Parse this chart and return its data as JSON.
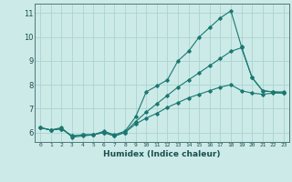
{
  "xlabel": "Humidex (Indice chaleur)",
  "ylabel": "",
  "background_color": "#cceae8",
  "grid_color": "#aad4d0",
  "line_color": "#1a7870",
  "xlim": [
    -0.5,
    23.5
  ],
  "ylim": [
    5.6,
    11.4
  ],
  "yticks": [
    6,
    7,
    8,
    9,
    10,
    11
  ],
  "xticks": [
    0,
    1,
    2,
    3,
    4,
    5,
    6,
    7,
    8,
    9,
    10,
    11,
    12,
    13,
    14,
    15,
    16,
    17,
    18,
    19,
    20,
    21,
    22,
    23
  ],
  "line1_x": [
    0,
    1,
    2,
    3,
    4,
    5,
    6,
    7,
    8,
    9,
    10,
    11,
    12,
    13,
    14,
    15,
    16,
    17,
    18,
    19,
    20,
    21,
    22,
    23
  ],
  "line1_y": [
    6.2,
    6.1,
    6.2,
    5.8,
    5.85,
    5.9,
    6.05,
    5.9,
    6.05,
    6.65,
    7.7,
    7.95,
    8.2,
    9.0,
    9.4,
    10.0,
    10.4,
    10.8,
    11.1,
    9.6,
    8.3,
    7.75,
    7.7,
    7.7
  ],
  "line2_x": [
    0,
    1,
    2,
    3,
    4,
    5,
    6,
    7,
    8,
    9,
    10,
    11,
    12,
    13,
    14,
    15,
    16,
    17,
    18,
    19,
    20,
    21,
    22,
    23
  ],
  "line2_y": [
    6.2,
    6.1,
    6.15,
    5.85,
    5.9,
    5.9,
    6.0,
    5.85,
    6.0,
    6.45,
    6.85,
    7.2,
    7.55,
    7.9,
    8.2,
    8.5,
    8.8,
    9.1,
    9.4,
    9.55,
    8.3,
    7.75,
    7.7,
    7.65
  ],
  "line3_x": [
    0,
    1,
    2,
    3,
    4,
    5,
    6,
    7,
    8,
    9,
    10,
    11,
    12,
    13,
    14,
    15,
    16,
    17,
    18,
    19,
    20,
    21,
    22,
    23
  ],
  "line3_y": [
    6.2,
    6.1,
    6.15,
    5.85,
    5.9,
    5.9,
    6.0,
    5.85,
    6.0,
    6.35,
    6.6,
    6.8,
    7.05,
    7.25,
    7.45,
    7.6,
    7.75,
    7.9,
    8.0,
    7.75,
    7.65,
    7.6,
    7.65,
    7.65
  ]
}
